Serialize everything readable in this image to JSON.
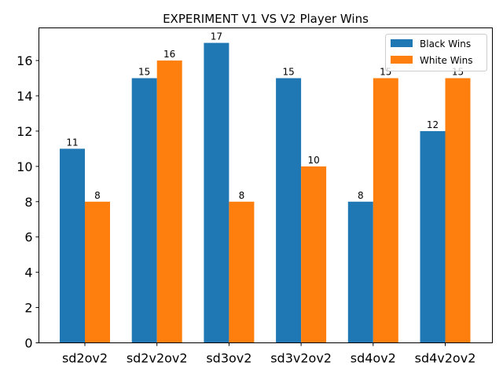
{
  "chart_data": {
    "type": "bar",
    "title": "EXPERIMENT V1 VS V2 Player Wins",
    "xlabel": "",
    "ylabel": "",
    "categories": [
      "sd2ov2",
      "sd2v2ov2",
      "sd3ov2",
      "sd3v2ov2",
      "sd4ov2",
      "sd4v2ov2"
    ],
    "series": [
      {
        "name": "Black Wins",
        "color": "#1f77b4",
        "values": [
          11,
          15,
          17,
          15,
          8,
          12
        ]
      },
      {
        "name": "White Wins",
        "color": "#ff7f0e",
        "values": [
          8,
          16,
          8,
          10,
          15,
          15
        ]
      }
    ],
    "ylim": [
      0,
      17.85
    ],
    "yticks": [
      0,
      2,
      4,
      6,
      8,
      10,
      12,
      14,
      16
    ],
    "grid": false,
    "legend_position": "top-right",
    "data_labels": true
  }
}
